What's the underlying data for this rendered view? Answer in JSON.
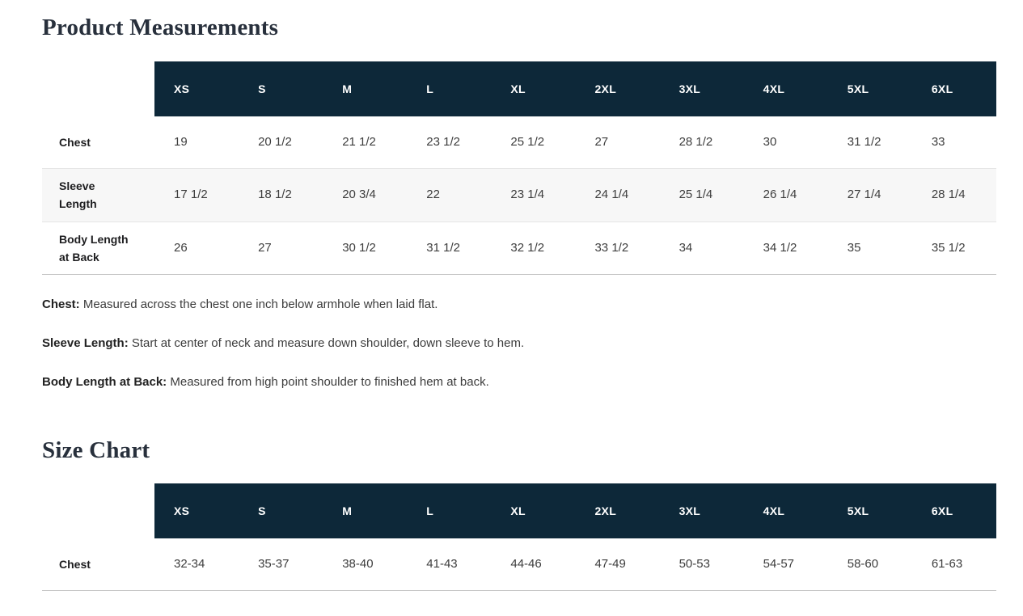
{
  "page": {
    "product_measurements_title": "Product Measurements",
    "size_chart_title": "Size Chart"
  },
  "sizes": [
    "XS",
    "S",
    "M",
    "L",
    "XL",
    "2XL",
    "3XL",
    "4XL",
    "5XL",
    "6XL"
  ],
  "measurements_table": {
    "rows": [
      {
        "label": "Chest",
        "values": [
          "19",
          "20 1/2",
          "21 1/2",
          "23 1/2",
          "25 1/2",
          "27",
          "28 1/2",
          "30",
          "31 1/2",
          "33"
        ]
      },
      {
        "label": "Sleeve Length",
        "values": [
          "17 1/2",
          "18 1/2",
          "20 3/4",
          "22",
          "23 1/4",
          "24 1/4",
          "25 1/4",
          "26 1/4",
          "27 1/4",
          "28 1/4"
        ]
      },
      {
        "label": "Body Length at Back",
        "values": [
          "26",
          "27",
          "30 1/2",
          "31 1/2",
          "32 1/2",
          "33 1/2",
          "34",
          "34 1/2",
          "35",
          "35 1/2"
        ]
      }
    ]
  },
  "notes": [
    {
      "term": "Chest:",
      "text": " Measured across the chest one inch below armhole when laid flat."
    },
    {
      "term": "Sleeve Length:",
      "text": " Start at center of neck and measure down shoulder, down sleeve to hem."
    },
    {
      "term": "Body Length at Back:",
      "text": " Measured from high point shoulder to finished hem at back."
    }
  ],
  "size_chart_table": {
    "rows": [
      {
        "label": "Chest",
        "values": [
          "32-34",
          "35-37",
          "38-40",
          "41-43",
          "44-46",
          "47-49",
          "50-53",
          "54-57",
          "58-60",
          "61-63"
        ]
      }
    ]
  },
  "colors": {
    "header_bg": "#0d2839",
    "header_text": "#ffffff",
    "title_text": "#28303c",
    "stripe_bg": "#f7f7f7"
  }
}
